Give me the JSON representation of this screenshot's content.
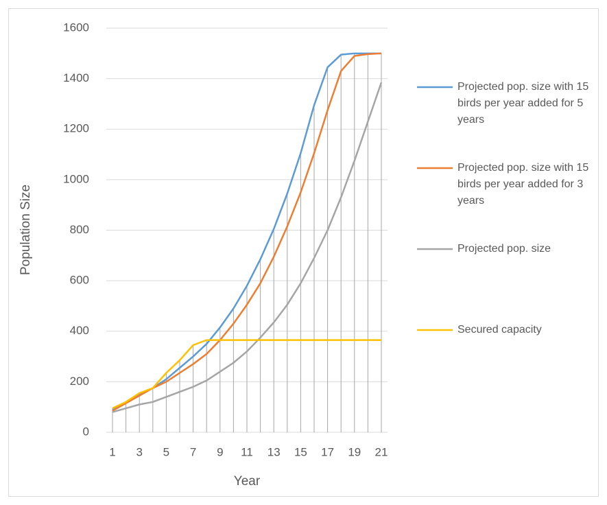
{
  "chart_data": {
    "type": "line",
    "y_label": "Population Size",
    "x_label": "Year",
    "x": [
      1,
      2,
      3,
      4,
      5,
      6,
      7,
      8,
      9,
      10,
      11,
      12,
      13,
      14,
      15,
      16,
      17,
      18,
      19,
      20,
      21
    ],
    "xlim": [
      1,
      21
    ],
    "xticks": [
      1,
      3,
      5,
      7,
      9,
      11,
      13,
      15,
      17,
      19,
      21
    ],
    "ylim": [
      0,
      1600
    ],
    "yticks": [
      0,
      200,
      400,
      600,
      800,
      1000,
      1200,
      1400,
      1600
    ],
    "grid": true,
    "drop_lines": true,
    "legend": "right",
    "series": [
      {
        "name": "Projected pop. size with 15 birds per year added for 5 years",
        "color": "#5b9bd5",
        "values": [
          90,
          120,
          150,
          175,
          210,
          255,
          300,
          350,
          415,
          490,
          580,
          685,
          805,
          945,
          1105,
          1295,
          1445,
          1495,
          1500,
          1500,
          1500
        ]
      },
      {
        "name": "Projected pop. size with 15 birds per year added for 3 years",
        "color": "#ed7d31",
        "values": [
          85,
          115,
          145,
          175,
          200,
          235,
          270,
          310,
          365,
          430,
          505,
          590,
          695,
          815,
          950,
          1105,
          1275,
          1430,
          1490,
          1497,
          1500
        ]
      },
      {
        "name": "Projected pop. size",
        "color": "#a5a5a5",
        "values": [
          80,
          95,
          110,
          120,
          140,
          160,
          180,
          205,
          240,
          275,
          320,
          375,
          435,
          505,
          590,
          690,
          800,
          930,
          1075,
          1230,
          1385
        ]
      },
      {
        "name": "Secured capacity",
        "color": "#ffc000",
        "values": [
          95,
          120,
          155,
          175,
          235,
          285,
          345,
          365,
          365,
          365,
          365,
          365,
          365,
          365,
          365,
          365,
          365,
          365,
          365,
          365,
          365
        ]
      }
    ]
  }
}
